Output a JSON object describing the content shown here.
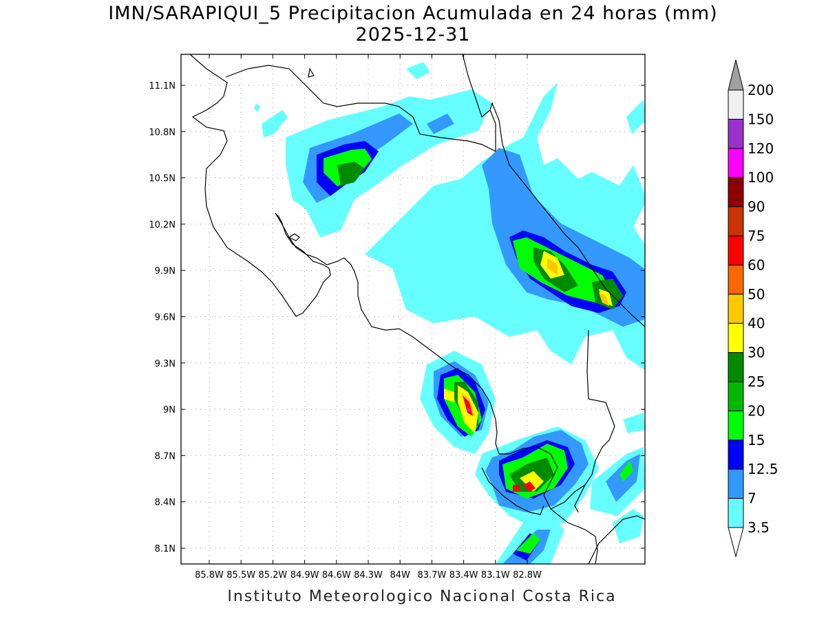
{
  "title": "IMN/SARAPIQUI_5 Precipitacion Acumulada en 24 horas (mm)",
  "date": "2025-12-31",
  "footer": "Instituto Meteorologico Nacional Costa Rica",
  "map": {
    "lon_ticks": [
      "85.8W",
      "85.5W",
      "85.2W",
      "84.9W",
      "84.6W",
      "84.3W",
      "84W",
      "83.7W",
      "83.4W",
      "83.1W",
      "82.8W"
    ],
    "lat_ticks": [
      "11.1N",
      "10.8N",
      "10.5N",
      "10.2N",
      "9.9N",
      "9.6N",
      "9.3N",
      "9N",
      "8.7N",
      "8.4N",
      "8.1N"
    ]
  },
  "legend": {
    "units": "mm",
    "levels": [
      {
        "label": "200",
        "color": "#a0a0a0"
      },
      {
        "label": "150",
        "color": "#f0f0f0"
      },
      {
        "label": "120",
        "color": "#9932cc"
      },
      {
        "label": "100",
        "color": "#ff00ff"
      },
      {
        "label": "90",
        "color": "#8b0000"
      },
      {
        "label": "75",
        "color": "#cc3300"
      },
      {
        "label": "60",
        "color": "#ff0000"
      },
      {
        "label": "50",
        "color": "#ff6600"
      },
      {
        "label": "40",
        "color": "#ffc800"
      },
      {
        "label": "30",
        "color": "#ffff00"
      },
      {
        "label": "25",
        "color": "#008a00"
      },
      {
        "label": "20",
        "color": "#00b800"
      },
      {
        "label": "15",
        "color": "#00ff00"
      },
      {
        "label": "12.5",
        "color": "#0000ff"
      },
      {
        "label": "7",
        "color": "#3399ff"
      },
      {
        "label": "3.5",
        "color": "#66ffff"
      }
    ]
  }
}
